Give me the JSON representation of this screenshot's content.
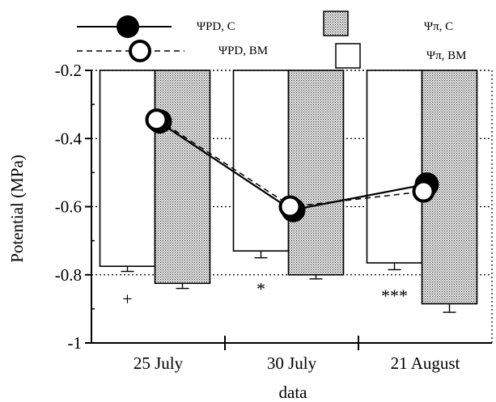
{
  "chart_data": {
    "type": "bar",
    "categories": [
      "25 July",
      "30 July",
      "21 August"
    ],
    "xlabel": "data",
    "ylabel": "Potential (MPa)",
    "ylim": [
      -1.0,
      -0.2
    ],
    "yticks": [
      {
        "value": -0.2,
        "label": "-0.2"
      },
      {
        "value": -0.4,
        "label": "-0.4"
      },
      {
        "value": -0.6,
        "label": "-0.6"
      },
      {
        "value": -0.8,
        "label": "-0.8"
      },
      {
        "value": -1.0,
        "label": "-1"
      }
    ],
    "grid": "horizontal dotted",
    "bar_baseline": -0.2,
    "bar_series": [
      {
        "name": "Ψπ, BM",
        "values": [
          -0.775,
          -0.73,
          -0.765
        ],
        "errors": [
          0.015,
          0.02,
          0.02
        ],
        "fill": "white"
      },
      {
        "name": "Ψπ, C",
        "values": [
          -0.825,
          -0.8,
          -0.885
        ],
        "errors": [
          0.015,
          0.012,
          0.025
        ],
        "fill": "stipple"
      }
    ],
    "line_series": [
      {
        "name": "ΨPD, C",
        "values": [
          -0.35,
          -0.61,
          -0.535
        ],
        "marker": "filled-circle",
        "line": "solid"
      },
      {
        "name": "ΨPD, BM",
        "values": [
          -0.345,
          -0.6,
          -0.555
        ],
        "marker": "open-circle",
        "line": "dashed"
      }
    ],
    "annotations": [
      {
        "category": "25 July",
        "text": "+",
        "y": -0.87
      },
      {
        "category": "30 July",
        "text": "*",
        "y": -0.84
      },
      {
        "category": "21 August",
        "text": "***",
        "y": -0.86
      }
    ],
    "legend": {
      "placement": "top",
      "items": [
        {
          "symbol": "filled-circle-solid-line",
          "label": "ΨPD, C"
        },
        {
          "symbol": "open-circle-dashed-line",
          "label": "ΨPD, BM"
        },
        {
          "symbol": "stipple-box",
          "label": "Ψπ, C"
        },
        {
          "symbol": "white-box",
          "label": "Ψπ, BM"
        }
      ]
    }
  }
}
